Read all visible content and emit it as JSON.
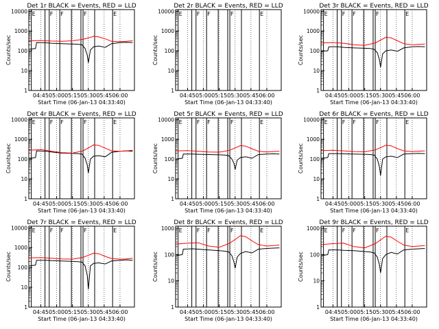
{
  "figure": {
    "x_axis_label": "Start Time (06-Jan-13 04:33:40)",
    "y_axis_label": "Counts/sec"
  },
  "colors": {
    "events": "#000000",
    "lld": "#ff0000",
    "grid": "#000000",
    "background": "#ffffff"
  },
  "chart_data": [
    {
      "type": "line",
      "title": "Det 1r BLACK = Events, RED = LLD",
      "ylog": true,
      "ylim": [
        1,
        12000
      ],
      "xlim": [
        "04:33:40",
        "06:13:40"
      ],
      "x_ticks": [
        "04:45",
        "05:00",
        "05:15",
        "05:30",
        "05:45",
        "06:00"
      ],
      "y_ticks": [
        "1",
        "10",
        "100",
        "1000",
        "10000"
      ],
      "flags": [
        "E",
        "F",
        "F",
        "F",
        "E"
      ],
      "series": [
        {
          "name": "Events",
          "x": [
            "04:34",
            "04:40",
            "04:41",
            "04:50",
            "04:55",
            "05:05",
            "05:15",
            "05:20",
            "05:24",
            "05:27",
            "05:29",
            "05:30",
            "05:32",
            "05:35",
            "05:40",
            "05:46",
            "05:52",
            "06:00",
            "06:06",
            "06:12"
          ],
          "y": [
            120,
            130,
            260,
            255,
            240,
            230,
            220,
            215,
            200,
            130,
            60,
            25,
            110,
            160,
            175,
            150,
            230,
            260,
            270,
            260
          ]
        },
        {
          "name": "LLD",
          "x": [
            "04:34",
            "04:45",
            "04:55",
            "05:05",
            "05:15",
            "05:25",
            "05:35",
            "05:40",
            "05:46",
            "05:52",
            "06:00",
            "06:06",
            "06:12"
          ],
          "y": [
            320,
            330,
            310,
            300,
            320,
            380,
            540,
            500,
            400,
            300,
            290,
            300,
            320
          ]
        }
      ]
    },
    {
      "type": "line",
      "title": "Det 2r BLACK = Events, RED = LLD",
      "ylog": true,
      "ylim": [
        1,
        12000
      ],
      "xlim": [
        "04:33:40",
        "06:13:40"
      ],
      "x_ticks": [
        "04:45",
        "05:00",
        "05:15",
        "05:30",
        "05:45",
        "06:00"
      ],
      "y_ticks": [
        "1",
        "10",
        "100",
        "1000",
        "10000"
      ],
      "flags": [
        "E",
        "F",
        "F",
        "F",
        "E"
      ],
      "series": []
    },
    {
      "type": "line",
      "title": "Det 3r BLACK = Events, RED = LLD",
      "ylog": true,
      "ylim": [
        1,
        12000
      ],
      "xlim": [
        "04:33:40",
        "06:13:40"
      ],
      "x_ticks": [
        "04:45",
        "05:00",
        "05:15",
        "05:30",
        "05:45",
        "06:00"
      ],
      "y_ticks": [
        "1",
        "10",
        "100",
        "1000",
        "10000"
      ],
      "flags": [
        "E",
        "F",
        "F",
        "F",
        "E"
      ],
      "series": [
        {
          "name": "Events",
          "x": [
            "04:34",
            "04:40",
            "04:41",
            "04:50",
            "04:55",
            "05:05",
            "05:15",
            "05:20",
            "05:24",
            "05:27",
            "05:29",
            "05:30",
            "05:32",
            "05:35",
            "05:40",
            "05:46",
            "05:52",
            "06:00",
            "06:06",
            "06:12"
          ],
          "y": [
            95,
            100,
            160,
            160,
            150,
            140,
            135,
            130,
            120,
            80,
            35,
            15,
            70,
            100,
            110,
            95,
            140,
            160,
            165,
            160
          ]
        },
        {
          "name": "LLD",
          "x": [
            "04:34",
            "04:45",
            "04:55",
            "05:05",
            "05:15",
            "05:25",
            "05:35",
            "05:40",
            "05:46",
            "05:52",
            "06:00",
            "06:06",
            "06:12"
          ],
          "y": [
            250,
            260,
            240,
            200,
            190,
            250,
            480,
            450,
            320,
            230,
            200,
            210,
            220
          ]
        }
      ]
    },
    {
      "type": "line",
      "title": "Det 4r BLACK = Events, RED = LLD",
      "ylog": true,
      "ylim": [
        1,
        12000
      ],
      "xlim": [
        "04:33:40",
        "06:13:40"
      ],
      "x_ticks": [
        "04:45",
        "05:00",
        "05:15",
        "05:30",
        "05:45",
        "06:00"
      ],
      "y_ticks": [
        "1",
        "10",
        "100",
        "1000",
        "10000"
      ],
      "flags": [
        "E",
        "F",
        "F",
        "F",
        "E"
      ],
      "series": [
        {
          "name": "Events",
          "x": [
            "04:34",
            "04:40",
            "04:41",
            "04:50",
            "04:55",
            "05:05",
            "05:15",
            "05:20",
            "05:24",
            "05:27",
            "05:29",
            "05:30",
            "05:32",
            "05:35",
            "05:40",
            "05:46",
            "05:52",
            "06:00",
            "06:06",
            "06:12"
          ],
          "y": [
            110,
            120,
            260,
            250,
            230,
            200,
            195,
            190,
            180,
            110,
            50,
            20,
            100,
            140,
            150,
            130,
            220,
            250,
            260,
            250
          ]
        },
        {
          "name": "LLD",
          "x": [
            "04:34",
            "04:45",
            "04:55",
            "05:05",
            "05:15",
            "05:25",
            "05:35",
            "05:40",
            "05:46",
            "05:52",
            "06:00",
            "06:06",
            "06:12"
          ],
          "y": [
            280,
            300,
            250,
            210,
            200,
            260,
            520,
            490,
            360,
            260,
            250,
            260,
            280
          ]
        }
      ]
    },
    {
      "type": "line",
      "title": "Det 5r BLACK = Events, RED = LLD",
      "ylog": true,
      "ylim": [
        1,
        12000
      ],
      "xlim": [
        "04:33:40",
        "06:13:40"
      ],
      "x_ticks": [
        "04:45",
        "05:00",
        "05:15",
        "05:30",
        "05:45",
        "06:00"
      ],
      "y_ticks": [
        "1",
        "10",
        "100",
        "1000",
        "10000"
      ],
      "flags": [
        "E",
        "F",
        "F",
        "F",
        "E"
      ],
      "series": [
        {
          "name": "Events",
          "x": [
            "04:34",
            "04:40",
            "04:41",
            "04:50",
            "04:55",
            "05:05",
            "05:15",
            "05:20",
            "05:24",
            "05:27",
            "05:29",
            "05:30",
            "05:32",
            "05:35",
            "05:40",
            "05:46",
            "05:52",
            "06:00",
            "06:06",
            "06:12"
          ],
          "y": [
            100,
            110,
            180,
            180,
            175,
            170,
            165,
            160,
            150,
            100,
            60,
            30,
            90,
            120,
            130,
            110,
            170,
            180,
            185,
            180
          ]
        },
        {
          "name": "LLD",
          "x": [
            "04:34",
            "04:45",
            "04:55",
            "05:05",
            "05:15",
            "05:25",
            "05:35",
            "05:40",
            "05:46",
            "05:52",
            "06:00",
            "06:06",
            "06:12"
          ],
          "y": [
            260,
            270,
            250,
            230,
            225,
            280,
            480,
            450,
            330,
            250,
            230,
            240,
            250
          ]
        }
      ]
    },
    {
      "type": "line",
      "title": "Det 6r BLACK = Events, RED = LLD",
      "ylog": true,
      "ylim": [
        1,
        12000
      ],
      "xlim": [
        "04:33:40",
        "06:13:40"
      ],
      "x_ticks": [
        "04:45",
        "05:00",
        "05:15",
        "05:30",
        "05:45",
        "06:00"
      ],
      "y_ticks": [
        "1",
        "10",
        "100",
        "1000",
        "10000"
      ],
      "flags": [
        "E",
        "F",
        "F",
        "F",
        "E"
      ],
      "series": [
        {
          "name": "Events",
          "x": [
            "04:34",
            "04:40",
            "04:41",
            "04:50",
            "04:55",
            "05:05",
            "05:15",
            "05:20",
            "05:24",
            "05:27",
            "05:29",
            "05:30",
            "05:32",
            "05:35",
            "05:40",
            "05:46",
            "05:52",
            "06:00",
            "06:06",
            "06:12"
          ],
          "y": [
            110,
            120,
            190,
            190,
            185,
            180,
            175,
            170,
            160,
            100,
            40,
            15,
            100,
            130,
            140,
            120,
            180,
            190,
            195,
            190
          ]
        },
        {
          "name": "LLD",
          "x": [
            "04:34",
            "04:45",
            "04:55",
            "05:05",
            "05:15",
            "05:25",
            "05:35",
            "05:40",
            "05:46",
            "05:52",
            "06:00",
            "06:06",
            "06:12"
          ],
          "y": [
            270,
            280,
            260,
            240,
            235,
            290,
            500,
            470,
            340,
            260,
            240,
            250,
            260
          ]
        }
      ]
    },
    {
      "type": "line",
      "title": "Det 7r BLACK = Events, RED = LLD",
      "ylog": true,
      "ylim": [
        1,
        12000
      ],
      "xlim": [
        "04:33:40",
        "06:13:40"
      ],
      "x_ticks": [
        "04:45",
        "05:00",
        "05:15",
        "05:30",
        "05:45",
        "06:00"
      ],
      "y_ticks": [
        "1",
        "10",
        "100",
        "1000",
        "10000"
      ],
      "flags": [
        "E",
        "F",
        "F",
        "F",
        "E"
      ],
      "series": [
        {
          "name": "Events",
          "x": [
            "04:34",
            "04:40",
            "04:41",
            "04:50",
            "04:55",
            "05:05",
            "05:15",
            "05:20",
            "05:24",
            "05:27",
            "05:29",
            "05:30",
            "05:32",
            "05:35",
            "05:40",
            "05:46",
            "05:52",
            "06:00",
            "06:06",
            "06:12"
          ],
          "y": [
            120,
            130,
            230,
            230,
            220,
            210,
            200,
            195,
            185,
            120,
            40,
            8,
            120,
            160,
            170,
            150,
            210,
            230,
            240,
            230
          ]
        },
        {
          "name": "LLD",
          "x": [
            "04:34",
            "04:45",
            "04:55",
            "05:05",
            "05:15",
            "05:25",
            "05:35",
            "05:40",
            "05:46",
            "05:52",
            "06:00",
            "06:06",
            "06:12"
          ],
          "y": [
            300,
            310,
            290,
            270,
            260,
            320,
            520,
            490,
            360,
            280,
            260,
            270,
            290
          ]
        }
      ]
    },
    {
      "type": "line",
      "title": "Det 8r BLACK = Events, RED = LLD",
      "ylog": true,
      "ylim": [
        1,
        1200
      ],
      "xlim": [
        "04:33:40",
        "06:13:40"
      ],
      "x_ticks": [
        "04:45",
        "05:00",
        "05:15",
        "05:30",
        "05:45",
        "06:00"
      ],
      "y_ticks": [
        "1",
        "10",
        "100",
        "1000"
      ],
      "flags": [
        "E",
        "F",
        "F",
        "F",
        "E"
      ],
      "series": [
        {
          "name": "Events",
          "x": [
            "04:34",
            "04:40",
            "04:41",
            "04:50",
            "04:55",
            "05:05",
            "05:15",
            "05:20",
            "05:24",
            "05:27",
            "05:29",
            "05:30",
            "05:32",
            "05:35",
            "05:40",
            "05:46",
            "05:52",
            "06:00",
            "06:06",
            "06:12"
          ],
          "y": [
            90,
            100,
            160,
            165,
            160,
            150,
            140,
            135,
            125,
            90,
            50,
            30,
            80,
            110,
            130,
            115,
            160,
            170,
            175,
            180
          ]
        },
        {
          "name": "LLD",
          "x": [
            "04:34",
            "04:45",
            "04:55",
            "05:05",
            "05:15",
            "05:25",
            "05:35",
            "05:40",
            "05:46",
            "05:52",
            "06:00",
            "06:06",
            "06:12"
          ],
          "y": [
            250,
            270,
            280,
            210,
            190,
            270,
            520,
            480,
            330,
            240,
            210,
            220,
            230
          ]
        }
      ]
    },
    {
      "type": "line",
      "title": "Det 9r BLACK = Events, RED = LLD",
      "ylog": true,
      "ylim": [
        1,
        1200
      ],
      "xlim": [
        "04:33:40",
        "06:13:40"
      ],
      "x_ticks": [
        "04:45",
        "05:00",
        "05:15",
        "05:30",
        "05:45",
        "06:00"
      ],
      "y_ticks": [
        "1",
        "10",
        "100",
        "1000"
      ],
      "flags": [
        "E",
        "F",
        "F",
        "F",
        "E"
      ],
      "series": [
        {
          "name": "Events",
          "x": [
            "04:34",
            "04:40",
            "04:41",
            "04:50",
            "04:55",
            "05:05",
            "05:15",
            "05:20",
            "05:24",
            "05:27",
            "05:29",
            "05:30",
            "05:32",
            "05:35",
            "05:40",
            "05:46",
            "05:52",
            "06:00",
            "06:06",
            "06:12"
          ],
          "y": [
            90,
            100,
            150,
            150,
            145,
            140,
            130,
            125,
            115,
            80,
            40,
            20,
            70,
            100,
            120,
            105,
            150,
            160,
            165,
            170
          ]
        },
        {
          "name": "LLD",
          "x": [
            "04:34",
            "04:45",
            "04:55",
            "05:05",
            "05:15",
            "05:25",
            "05:35",
            "05:40",
            "05:46",
            "05:52",
            "06:00",
            "06:06",
            "06:12"
          ],
          "y": [
            240,
            260,
            270,
            200,
            180,
            260,
            500,
            460,
            320,
            230,
            200,
            210,
            220
          ]
        }
      ]
    }
  ]
}
